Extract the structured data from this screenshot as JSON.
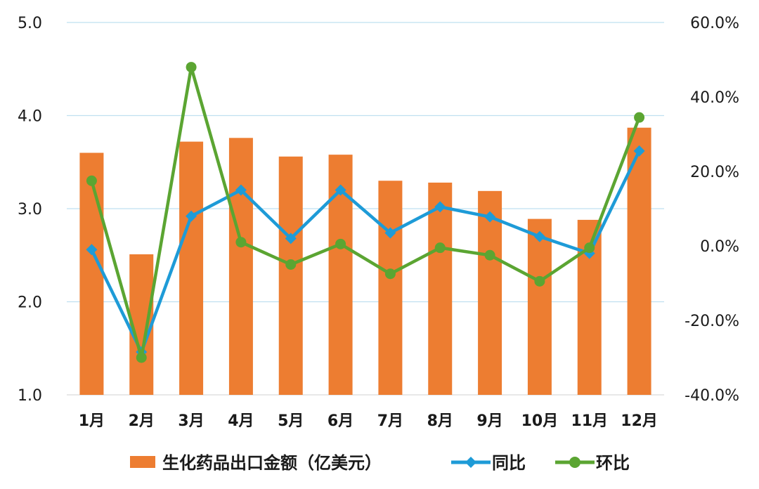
{
  "chart_data": {
    "type": "bar",
    "categories": [
      "1月",
      "2月",
      "3月",
      "4月",
      "5月",
      "6月",
      "7月",
      "8月",
      "9月",
      "10月",
      "11月",
      "12月"
    ],
    "series": [
      {
        "name": "生化药品出口金额（亿美元）",
        "type": "bar",
        "axis": "left",
        "color": "#ED7D31",
        "values": [
          3.6,
          2.51,
          3.72,
          3.76,
          3.56,
          3.58,
          3.3,
          3.28,
          3.19,
          2.89,
          2.88,
          3.87
        ]
      },
      {
        "name": "同比",
        "type": "line",
        "marker": "diamond",
        "axis": "right",
        "color": "#1E9BD7",
        "values": [
          -1.0,
          -28.5,
          8.0,
          15.0,
          2.0,
          15.0,
          3.5,
          10.5,
          7.8,
          2.5,
          -2.0,
          25.5
        ]
      },
      {
        "name": "环比",
        "type": "line",
        "marker": "circle",
        "axis": "right",
        "color": "#5BA532",
        "values": [
          17.5,
          -30.0,
          48.0,
          1.0,
          -5.0,
          0.5,
          -7.5,
          -0.5,
          -2.5,
          -9.5,
          -0.5,
          34.5
        ]
      }
    ],
    "y_left": {
      "min": 1.0,
      "max": 5.0,
      "step": 1.0,
      "tick_labels": [
        "1.0",
        "2.0",
        "3.0",
        "4.0",
        "5.0"
      ]
    },
    "y_right": {
      "min": -40,
      "max": 60,
      "step": 20,
      "unit": "%",
      "tick_labels": [
        "-40.0%",
        "-20.0%",
        "0.0%",
        "20.0%",
        "40.0%",
        "60.0%"
      ]
    },
    "grid": true,
    "legend_position": "bottom"
  }
}
